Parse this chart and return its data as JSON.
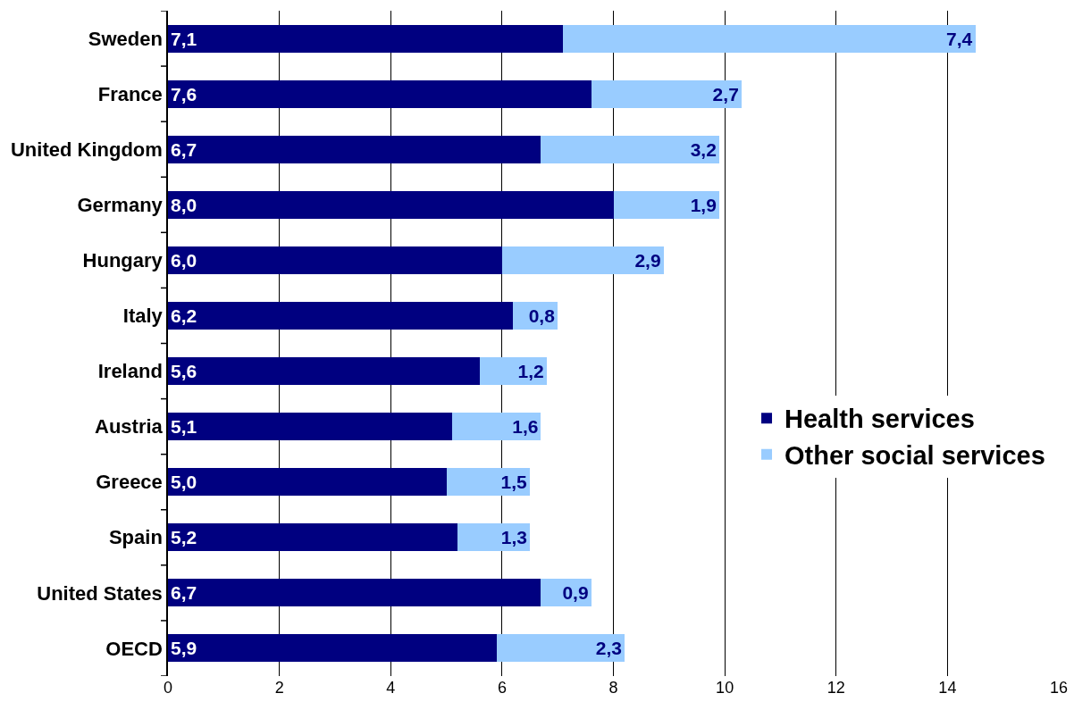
{
  "chart_data": {
    "type": "bar",
    "orientation": "horizontal",
    "stacked": true,
    "categories": [
      "Sweden",
      "France",
      "United Kingdom",
      "Germany",
      "Hungary",
      "Italy",
      "Ireland",
      "Austria",
      "Greece",
      "Spain",
      "United States",
      "OECD"
    ],
    "series": [
      {
        "name": "Health services",
        "color": "#000080",
        "values": [
          7.1,
          7.6,
          6.7,
          8.0,
          6.0,
          6.2,
          5.6,
          5.1,
          5.0,
          5.2,
          6.7,
          5.9
        ],
        "value_labels": [
          "7,1",
          "7,6",
          "6,7",
          "8,0",
          "6,0",
          "6,2",
          "5,6",
          "5,1",
          "5,0",
          "5,2",
          "6,7",
          "5,9"
        ]
      },
      {
        "name": "Other social services",
        "color": "#99ccff",
        "values": [
          7.4,
          2.7,
          3.2,
          1.9,
          2.9,
          0.8,
          1.2,
          1.6,
          1.5,
          1.3,
          0.9,
          2.3
        ],
        "value_labels": [
          "7,4",
          "2,7",
          "3,2",
          "1,9",
          "2,9",
          "0,8",
          "1,2",
          "1,6",
          "1,5",
          "1,3",
          "0,9",
          "2,3"
        ]
      }
    ],
    "xlim": [
      0,
      16
    ],
    "xticks": [
      0,
      2,
      4,
      6,
      8,
      10,
      12,
      14,
      16
    ],
    "grid": "x",
    "legend": "right"
  }
}
